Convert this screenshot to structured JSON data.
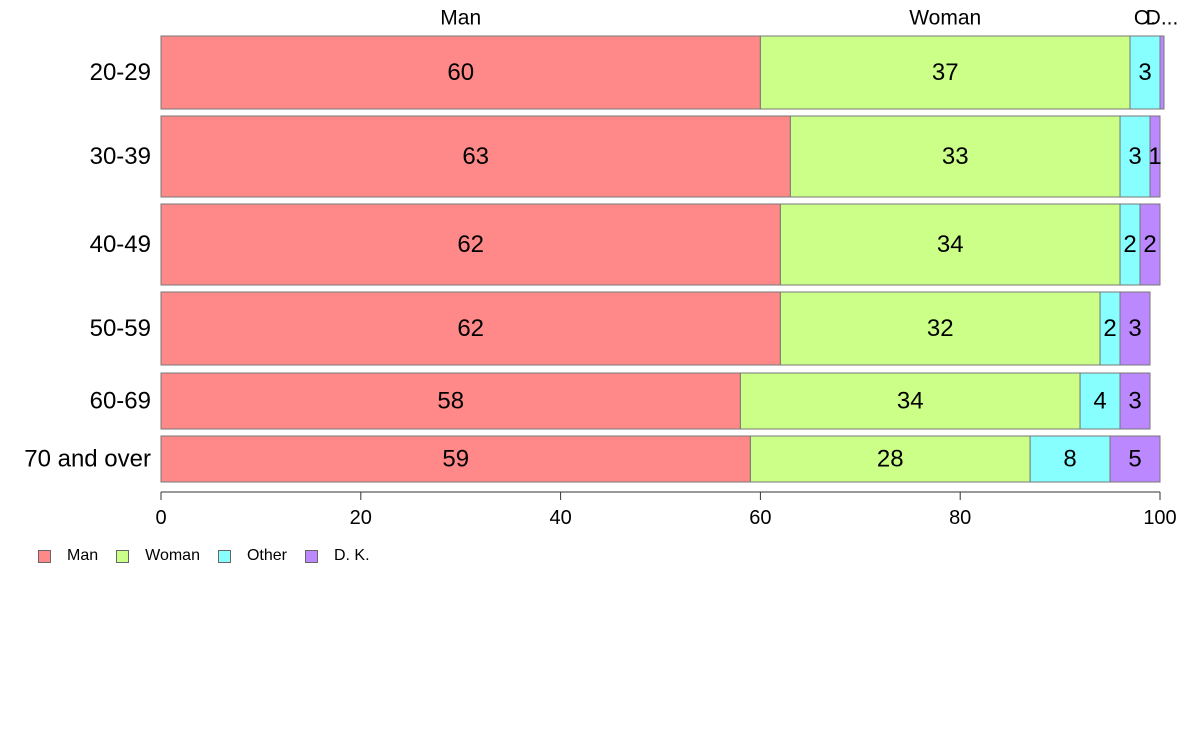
{
  "chart_data": {
    "type": "bar",
    "orientation": "horizontal",
    "stacked": true,
    "categories": [
      "20-29",
      "30-39",
      "40-49",
      "50-59",
      "60-69",
      "70 and over"
    ],
    "series": [
      {
        "name": "Man",
        "color": "#ff8888",
        "values": [
          60,
          63,
          62,
          62,
          58,
          59
        ]
      },
      {
        "name": "Woman",
        "color": "#ccff88",
        "values": [
          37,
          33,
          34,
          32,
          34,
          28
        ]
      },
      {
        "name": "Other",
        "color": "#88ffff",
        "values": [
          3,
          3,
          2,
          2,
          4,
          8
        ]
      },
      {
        "name": "D. K.",
        "color": "#bb88ff",
        "values": [
          0.4,
          1,
          2,
          3,
          3,
          5
        ]
      }
    ],
    "data_labels": [
      [
        "60",
        "37",
        "3",
        ""
      ],
      [
        "63",
        "33",
        "3",
        "1"
      ],
      [
        "62",
        "34",
        "2",
        "2"
      ],
      [
        "62",
        "32",
        "2",
        "3"
      ],
      [
        "58",
        "34",
        "4",
        "3"
      ],
      [
        "59",
        "28",
        "8",
        "5"
      ]
    ],
    "top_labels": [
      "Man",
      "Woman",
      "O.",
      "D..."
    ],
    "xlim": [
      0,
      100
    ],
    "xticks": [
      "0",
      "20",
      "40",
      "60",
      "80",
      "100"
    ],
    "grid": false,
    "legend_position": "bottom-left"
  },
  "legend": {
    "items": [
      {
        "label": "Man",
        "color": "#ff8888"
      },
      {
        "label": "Woman",
        "color": "#ccff88"
      },
      {
        "label": "Other",
        "color": "#88ffff"
      },
      {
        "label": "D. K.",
        "color": "#bb88ff"
      }
    ]
  }
}
